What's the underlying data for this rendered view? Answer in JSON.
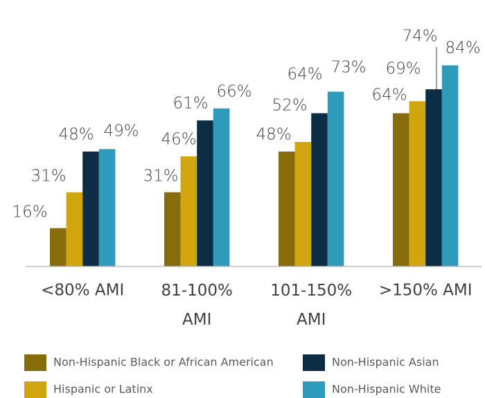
{
  "chart_data": {
    "type": "bar",
    "categories": [
      "<80% AMI",
      "81-100% AMI",
      "101-150% AMI",
      ">150% AMI"
    ],
    "series": [
      {
        "name": "Non-Hispanic Black or African American",
        "color": "#876c0b",
        "values": [
          16,
          31,
          48,
          64
        ],
        "value_labels": [
          "16%",
          "31%",
          "48%",
          "64%"
        ]
      },
      {
        "name": "Hispanic or Latinx",
        "color": "#d1a50e",
        "values": [
          31,
          46,
          52,
          69
        ],
        "value_labels": [
          "31%",
          "46%",
          "52%",
          "69%"
        ]
      },
      {
        "name": "Non-Hispanic Asian",
        "color": "#0c2d44",
        "values": [
          48,
          61,
          64,
          74
        ],
        "value_labels": [
          "48%",
          "61%",
          "64%",
          "74%"
        ]
      },
      {
        "name": "Non-Hispanic White",
        "color": "#2e9bbb",
        "values": [
          49,
          66,
          73,
          84
        ],
        "value_labels": [
          "49%",
          "66%",
          "73%",
          "84%"
        ]
      }
    ]
  }
}
